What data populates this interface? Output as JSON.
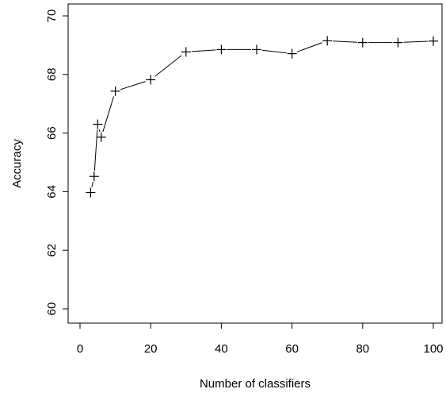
{
  "chart_data": {
    "type": "line",
    "xlabel": "Number of classifiers",
    "ylabel": "Accuracy",
    "xlim": [
      0,
      100
    ],
    "ylim": [
      60,
      70
    ],
    "x_ticks": [
      0,
      20,
      40,
      60,
      80,
      100
    ],
    "y_ticks": [
      60,
      62,
      64,
      66,
      68,
      70
    ],
    "grid": false,
    "marker": "plus",
    "line_color": "#000000",
    "series": [
      {
        "x": [
          3,
          4,
          5,
          6,
          10,
          20,
          30,
          40,
          50,
          60,
          70,
          80,
          90,
          100
        ],
        "y": [
          63.97,
          64.52,
          66.3,
          65.86,
          67.43,
          67.82,
          68.77,
          68.85,
          68.85,
          68.71,
          69.15,
          69.09,
          69.09,
          69.14
        ]
      }
    ]
  }
}
